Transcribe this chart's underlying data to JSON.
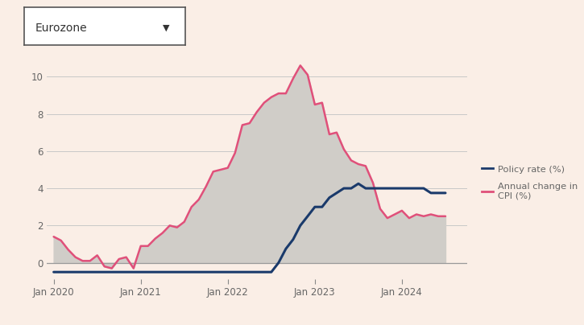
{
  "background_color": "#faeee6",
  "plot_bg_color": "#faeee6",
  "policy_rate": {
    "dates": [
      2020.0,
      2020.083,
      2020.167,
      2020.25,
      2020.333,
      2020.417,
      2020.5,
      2020.583,
      2020.667,
      2020.75,
      2020.833,
      2020.917,
      2021.0,
      2021.083,
      2021.167,
      2021.25,
      2021.333,
      2021.417,
      2021.5,
      2021.583,
      2021.667,
      2021.75,
      2021.833,
      2021.917,
      2022.0,
      2022.083,
      2022.167,
      2022.25,
      2022.333,
      2022.417,
      2022.5,
      2022.583,
      2022.667,
      2022.75,
      2022.833,
      2022.917,
      2023.0,
      2023.083,
      2023.167,
      2023.25,
      2023.333,
      2023.417,
      2023.5,
      2023.583,
      2023.667,
      2023.75,
      2023.833,
      2023.917,
      2024.0,
      2024.083,
      2024.167,
      2024.25,
      2024.333,
      2024.417,
      2024.5
    ],
    "values": [
      -0.5,
      -0.5,
      -0.5,
      -0.5,
      -0.5,
      -0.5,
      -0.5,
      -0.5,
      -0.5,
      -0.5,
      -0.5,
      -0.5,
      -0.5,
      -0.5,
      -0.5,
      -0.5,
      -0.5,
      -0.5,
      -0.5,
      -0.5,
      -0.5,
      -0.5,
      -0.5,
      -0.5,
      -0.5,
      -0.5,
      -0.5,
      -0.5,
      -0.5,
      -0.5,
      -0.5,
      0.0,
      0.75,
      1.25,
      2.0,
      2.5,
      3.0,
      3.0,
      3.5,
      3.75,
      4.0,
      4.0,
      4.25,
      4.0,
      4.0,
      4.0,
      4.0,
      4.0,
      4.0,
      4.0,
      4.0,
      4.0,
      3.75,
      3.75,
      3.75
    ],
    "color": "#1a3a6b",
    "linewidth": 2.2
  },
  "cpi": {
    "dates": [
      2020.0,
      2020.083,
      2020.167,
      2020.25,
      2020.333,
      2020.417,
      2020.5,
      2020.583,
      2020.667,
      2020.75,
      2020.833,
      2020.917,
      2021.0,
      2021.083,
      2021.167,
      2021.25,
      2021.333,
      2021.417,
      2021.5,
      2021.583,
      2021.667,
      2021.75,
      2021.833,
      2021.917,
      2022.0,
      2022.083,
      2022.167,
      2022.25,
      2022.333,
      2022.417,
      2022.5,
      2022.583,
      2022.667,
      2022.75,
      2022.833,
      2022.917,
      2023.0,
      2023.083,
      2023.167,
      2023.25,
      2023.333,
      2023.417,
      2023.5,
      2023.583,
      2023.667,
      2023.75,
      2023.833,
      2023.917,
      2024.0,
      2024.083,
      2024.167,
      2024.25,
      2024.333,
      2024.417,
      2024.5
    ],
    "values": [
      1.4,
      1.2,
      0.7,
      0.3,
      0.1,
      0.1,
      0.4,
      -0.2,
      -0.3,
      0.2,
      0.3,
      -0.3,
      0.9,
      0.9,
      1.3,
      1.6,
      2.0,
      1.9,
      2.2,
      3.0,
      3.4,
      4.1,
      4.9,
      5.0,
      5.1,
      5.9,
      7.4,
      7.5,
      8.1,
      8.6,
      8.9,
      9.1,
      9.1,
      9.9,
      10.6,
      10.1,
      8.5,
      8.6,
      6.9,
      7.0,
      6.1,
      5.5,
      5.3,
      5.2,
      4.3,
      2.9,
      2.4,
      2.6,
      2.8,
      2.4,
      2.6,
      2.5,
      2.6,
      2.5,
      2.5
    ],
    "color": "#e0507a",
    "fill_color": "#d0cdc8",
    "linewidth": 1.8
  },
  "xlim": [
    2019.92,
    2024.75
  ],
  "ylim": [
    -0.9,
    11.5
  ],
  "yticks": [
    0,
    2,
    4,
    6,
    8,
    10
  ],
  "xtick_labels": [
    "Jan 2020",
    "Jan 2021",
    "Jan 2022",
    "Jan 2023",
    "Jan 2024"
  ],
  "xtick_positions": [
    2020.0,
    2021.0,
    2022.0,
    2023.0,
    2024.0
  ],
  "legend_policy_label": "Policy rate (%)",
  "legend_cpi_label": "Annual change in\nCPI (%)",
  "dropdown_label": "Eurozone",
  "grid_color": "#c8c8c8",
  "zero_line_color": "#999999",
  "tick_color": "#888888",
  "label_color": "#666666"
}
